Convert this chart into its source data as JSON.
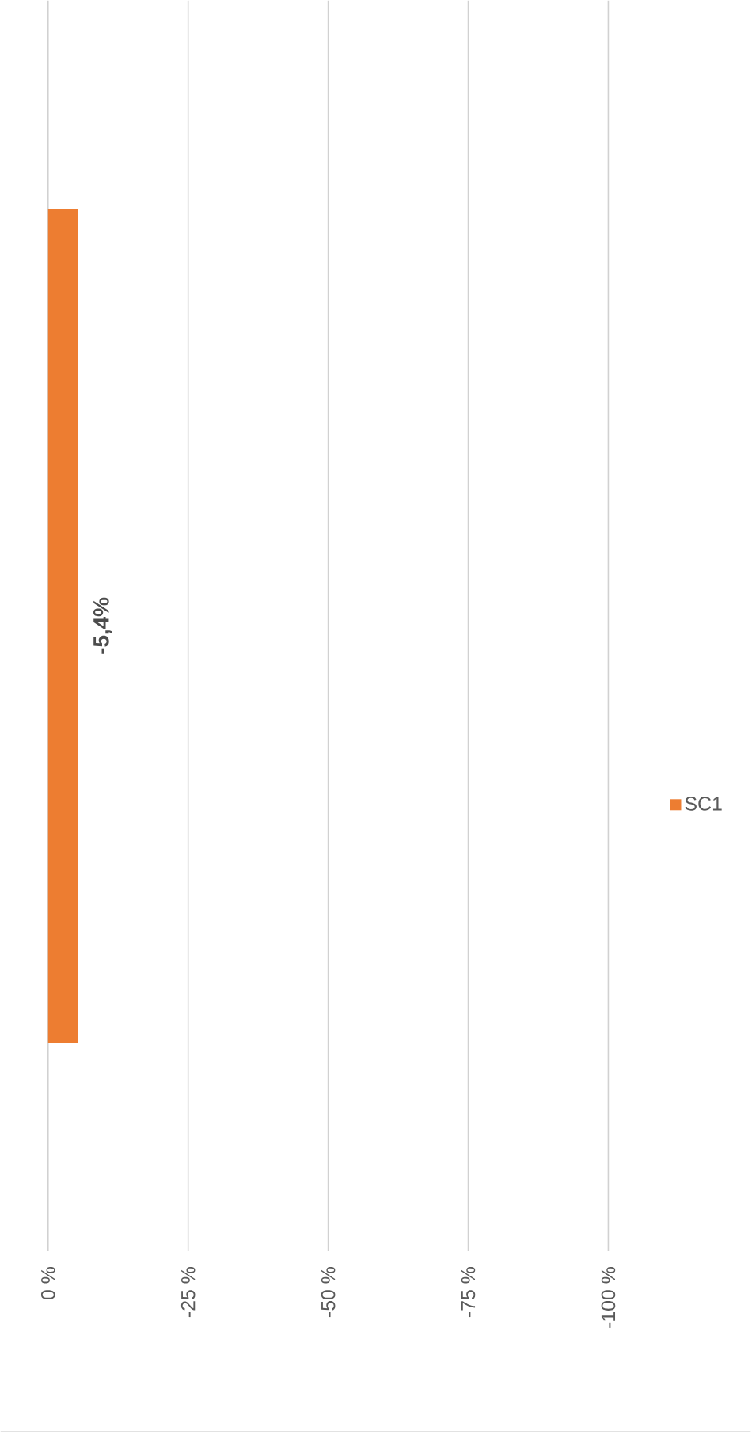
{
  "chart_data": {
    "type": "bar",
    "orientation": "horizontal",
    "categories": [
      null
    ],
    "series": [
      {
        "name": "SC1",
        "color": "#ed7d31",
        "values": [
          -5.4
        ],
        "value_labels": [
          "-5,4%"
        ]
      }
    ],
    "xlim": [
      0,
      -100
    ],
    "xticks": [
      {
        "value": 0,
        "label": "0 %"
      },
      {
        "value": -25,
        "label": "-25 %"
      },
      {
        "value": -50,
        "label": "-50 %"
      },
      {
        "value": -75,
        "label": "-75 %"
      },
      {
        "value": -100,
        "label": "-100 %"
      }
    ],
    "grid": "x",
    "legend": "right",
    "tick_labels": "x"
  }
}
